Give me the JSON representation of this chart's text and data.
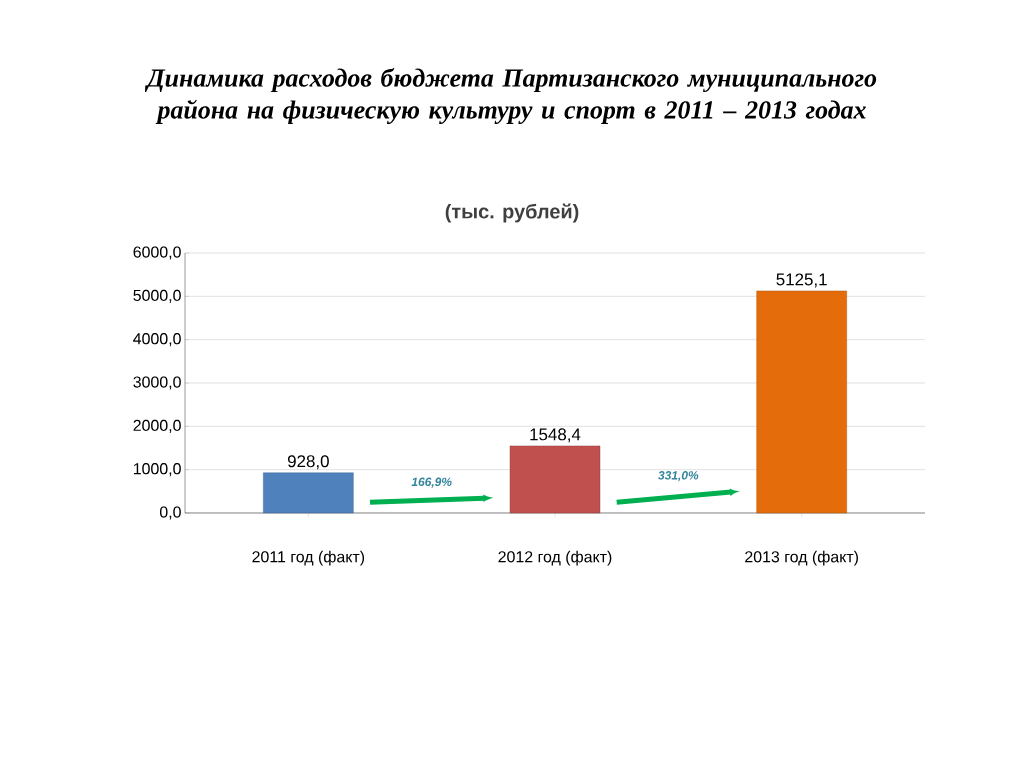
{
  "chart_data": {
    "type": "bar",
    "title": "Динамика расходов бюджета Партизанского муниципального района на физическую культуру и спорт в 2011 – 2013 годах",
    "subtitle": "(тыс. рублей)",
    "categories": [
      "2011 год (факт)",
      "2012 год (факт)",
      "2013 год (факт)"
    ],
    "values": [
      928.0,
      1548.4,
      5125.1
    ],
    "colors": [
      "#4f81bd",
      "#c0504d",
      "#e46c0a"
    ],
    "value_labels": [
      "928,0",
      "1548,4",
      "5125,1"
    ],
    "annotations": [
      "166,9%",
      "331,0%"
    ],
    "ylim": [
      0,
      6000
    ],
    "yticks": [
      {
        "value": 0,
        "label": "0,0"
      },
      {
        "value": 1000,
        "label": "1000,0"
      },
      {
        "value": 2000,
        "label": "2000,0"
      },
      {
        "value": 3000,
        "label": "3000,0"
      },
      {
        "value": 4000,
        "label": "4000,0"
      },
      {
        "value": 5000,
        "label": "5000,0"
      },
      {
        "value": 6000,
        "label": "6000,0"
      }
    ],
    "grid": "y"
  }
}
